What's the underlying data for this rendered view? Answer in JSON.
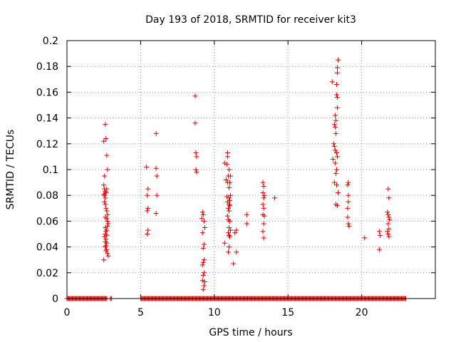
{
  "chart_data": {
    "type": "scatter",
    "title": "Day 193 of 2018, SRMTID for receiver kit3",
    "xlabel": "GPS time / hours",
    "ylabel": "SRMTID / TECUs",
    "xlim": [
      0,
      25
    ],
    "ylim": [
      0,
      0.2
    ],
    "grid": true,
    "marker": "+",
    "color": "#e00000",
    "xticks": [
      0,
      5,
      10,
      15,
      20
    ],
    "xtick_labels": [
      "0",
      "5",
      "10",
      "15",
      "20"
    ],
    "yticks": [
      0,
      0.02,
      0.04,
      0.06,
      0.08,
      0.1,
      0.12,
      0.14,
      0.16,
      0.18,
      0.2
    ],
    "ytick_labels": [
      "0",
      "0.02",
      "0.04",
      "0.06",
      "0.08",
      "0.1",
      "0.12",
      "0.14",
      "0.16",
      "0.18",
      "0.2"
    ],
    "series": [
      {
        "name": "SRMTID",
        "points": [
          [
            2.5,
            0.122
          ],
          [
            2.65,
            0.124
          ],
          [
            2.6,
            0.135
          ],
          [
            2.7,
            0.111
          ],
          [
            2.75,
            0.1
          ],
          [
            2.55,
            0.095
          ],
          [
            2.5,
            0.088
          ],
          [
            2.55,
            0.085
          ],
          [
            2.6,
            0.083
          ],
          [
            2.65,
            0.082
          ],
          [
            2.5,
            0.081
          ],
          [
            2.55,
            0.08
          ],
          [
            2.6,
            0.078
          ],
          [
            2.7,
            0.085
          ],
          [
            2.55,
            0.075
          ],
          [
            2.6,
            0.073
          ],
          [
            2.65,
            0.07
          ],
          [
            2.7,
            0.068
          ],
          [
            2.75,
            0.065
          ],
          [
            2.6,
            0.063
          ],
          [
            2.7,
            0.062
          ],
          [
            2.75,
            0.06
          ],
          [
            2.8,
            0.058
          ],
          [
            2.75,
            0.056
          ],
          [
            2.6,
            0.055
          ],
          [
            2.7,
            0.053
          ],
          [
            2.65,
            0.052
          ],
          [
            2.6,
            0.05
          ],
          [
            2.7,
            0.049
          ],
          [
            2.55,
            0.048
          ],
          [
            2.65,
            0.046
          ],
          [
            2.6,
            0.044
          ],
          [
            2.7,
            0.043
          ],
          [
            2.65,
            0.041
          ],
          [
            2.6,
            0.04
          ],
          [
            2.7,
            0.038
          ],
          [
            2.65,
            0.037
          ],
          [
            2.75,
            0.035
          ],
          [
            2.8,
            0.033
          ],
          [
            2.5,
            0.03
          ],
          [
            5.4,
            0.102
          ],
          [
            5.5,
            0.085
          ],
          [
            5.45,
            0.08
          ],
          [
            5.5,
            0.07
          ],
          [
            5.45,
            0.068
          ],
          [
            5.5,
            0.053
          ],
          [
            5.45,
            0.05
          ],
          [
            6.05,
            0.128
          ],
          [
            6.05,
            0.101
          ],
          [
            6.1,
            0.095
          ],
          [
            6.1,
            0.08
          ],
          [
            6.05,
            0.066
          ],
          [
            8.7,
            0.157
          ],
          [
            8.7,
            0.136
          ],
          [
            8.75,
            0.113
          ],
          [
            8.8,
            0.11
          ],
          [
            8.75,
            0.1
          ],
          [
            8.8,
            0.098
          ],
          [
            9.2,
            0.067
          ],
          [
            9.25,
            0.065
          ],
          [
            9.15,
            0.062
          ],
          [
            9.3,
            0.06
          ],
          [
            9.35,
            0.055
          ],
          [
            9.2,
            0.051
          ],
          [
            9.3,
            0.042
          ],
          [
            9.25,
            0.039
          ],
          [
            9.3,
            0.03
          ],
          [
            9.25,
            0.028
          ],
          [
            9.2,
            0.026
          ],
          [
            9.3,
            0.02
          ],
          [
            9.25,
            0.018
          ],
          [
            9.2,
            0.014
          ],
          [
            9.35,
            0.013
          ],
          [
            9.3,
            0.01
          ],
          [
            9.25,
            0.007
          ],
          [
            10.7,
            0.105
          ],
          [
            10.9,
            0.113
          ],
          [
            10.9,
            0.11
          ],
          [
            10.85,
            0.104
          ],
          [
            11.0,
            0.1
          ],
          [
            10.95,
            0.095
          ],
          [
            11.1,
            0.095
          ],
          [
            10.8,
            0.092
          ],
          [
            10.9,
            0.09
          ],
          [
            11.05,
            0.09
          ],
          [
            11.0,
            0.086
          ],
          [
            11.1,
            0.08
          ],
          [
            10.85,
            0.079
          ],
          [
            11.0,
            0.078
          ],
          [
            11.05,
            0.076
          ],
          [
            10.9,
            0.075
          ],
          [
            11.0,
            0.073
          ],
          [
            11.05,
            0.072
          ],
          [
            10.95,
            0.07
          ],
          [
            11.0,
            0.068
          ],
          [
            10.9,
            0.064
          ],
          [
            10.95,
            0.061
          ],
          [
            11.05,
            0.06
          ],
          [
            11.0,
            0.055
          ],
          [
            11.1,
            0.053
          ],
          [
            10.95,
            0.051
          ],
          [
            11.0,
            0.049
          ],
          [
            11.05,
            0.048
          ],
          [
            10.7,
            0.043
          ],
          [
            11.0,
            0.04
          ],
          [
            10.95,
            0.036
          ],
          [
            11.4,
            0.051
          ],
          [
            11.5,
            0.053
          ],
          [
            11.5,
            0.036
          ],
          [
            11.3,
            0.027
          ],
          [
            12.2,
            0.065
          ],
          [
            12.2,
            0.058
          ],
          [
            13.3,
            0.09
          ],
          [
            13.35,
            0.087
          ],
          [
            13.3,
            0.082
          ],
          [
            13.4,
            0.08
          ],
          [
            13.35,
            0.078
          ],
          [
            13.3,
            0.073
          ],
          [
            13.35,
            0.07
          ],
          [
            13.3,
            0.065
          ],
          [
            13.4,
            0.064
          ],
          [
            13.35,
            0.058
          ],
          [
            13.3,
            0.052
          ],
          [
            13.35,
            0.047
          ],
          [
            14.1,
            0.078
          ],
          [
            18.0,
            0.168
          ],
          [
            18.4,
            0.185
          ],
          [
            18.35,
            0.179
          ],
          [
            18.35,
            0.175
          ],
          [
            18.3,
            0.166
          ],
          [
            18.3,
            0.158
          ],
          [
            18.35,
            0.156
          ],
          [
            18.35,
            0.148
          ],
          [
            18.2,
            0.142
          ],
          [
            18.25,
            0.138
          ],
          [
            18.15,
            0.135
          ],
          [
            18.2,
            0.133
          ],
          [
            18.25,
            0.128
          ],
          [
            18.1,
            0.12
          ],
          [
            18.15,
            0.118
          ],
          [
            18.2,
            0.115
          ],
          [
            18.3,
            0.113
          ],
          [
            18.35,
            0.11
          ],
          [
            18.05,
            0.108
          ],
          [
            18.2,
            0.105
          ],
          [
            18.3,
            0.1
          ],
          [
            18.25,
            0.097
          ],
          [
            18.15,
            0.09
          ],
          [
            18.3,
            0.088
          ],
          [
            18.4,
            0.082
          ],
          [
            18.25,
            0.073
          ],
          [
            18.35,
            0.072
          ],
          [
            19.1,
            0.09
          ],
          [
            19.05,
            0.088
          ],
          [
            19.1,
            0.08
          ],
          [
            19.1,
            0.075
          ],
          [
            19.05,
            0.07
          ],
          [
            19.05,
            0.063
          ],
          [
            19.1,
            0.058
          ],
          [
            19.15,
            0.056
          ],
          [
            20.2,
            0.047
          ],
          [
            21.2,
            0.052
          ],
          [
            21.25,
            0.049
          ],
          [
            21.2,
            0.038
          ],
          [
            21.8,
            0.085
          ],
          [
            21.85,
            0.078
          ],
          [
            21.75,
            0.067
          ],
          [
            21.8,
            0.065
          ],
          [
            21.85,
            0.063
          ],
          [
            21.9,
            0.061
          ],
          [
            21.8,
            0.058
          ],
          [
            21.85,
            0.054
          ],
          [
            21.75,
            0.052
          ],
          [
            21.8,
            0.05
          ],
          [
            21.85,
            0.048
          ]
        ],
        "zero_runs": [
          [
            0.0,
            2.7
          ],
          [
            2.95,
            3.05
          ],
          [
            5.0,
            23.0
          ]
        ]
      }
    ]
  }
}
